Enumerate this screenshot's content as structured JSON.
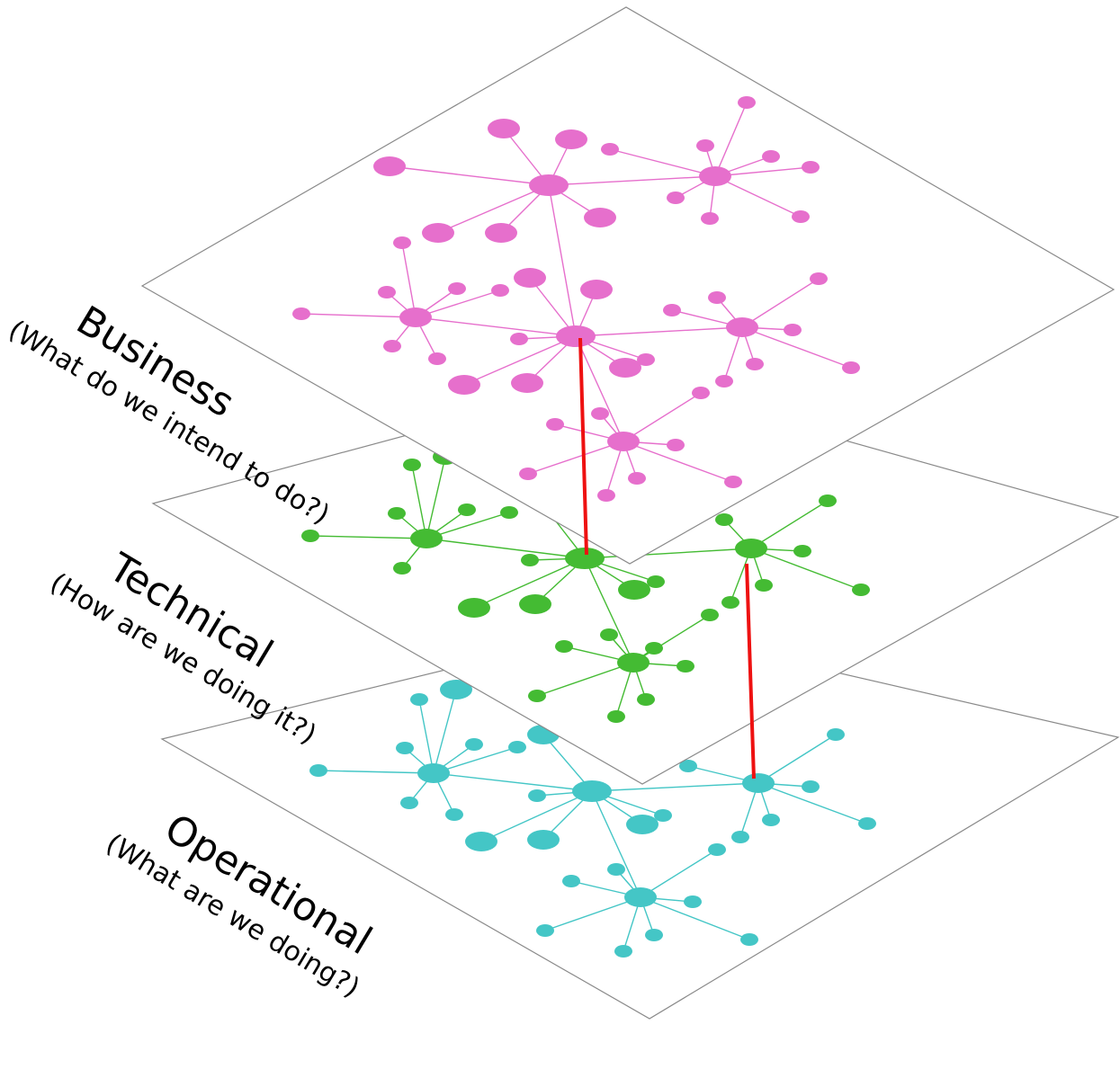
{
  "layers": [
    {
      "id": "operational",
      "title": "Operational",
      "subtitle": "(What are we doing?)",
      "color": "#44c6c6"
    },
    {
      "id": "technical",
      "title": "Technical",
      "subtitle": "(How are we doing it?)",
      "color": "#44bb33"
    },
    {
      "id": "business",
      "title": "Business",
      "subtitle": "(What do we intend to do?)",
      "color": "#e66fcc"
    }
  ],
  "cross_layer_link_color": "#ee1111"
}
